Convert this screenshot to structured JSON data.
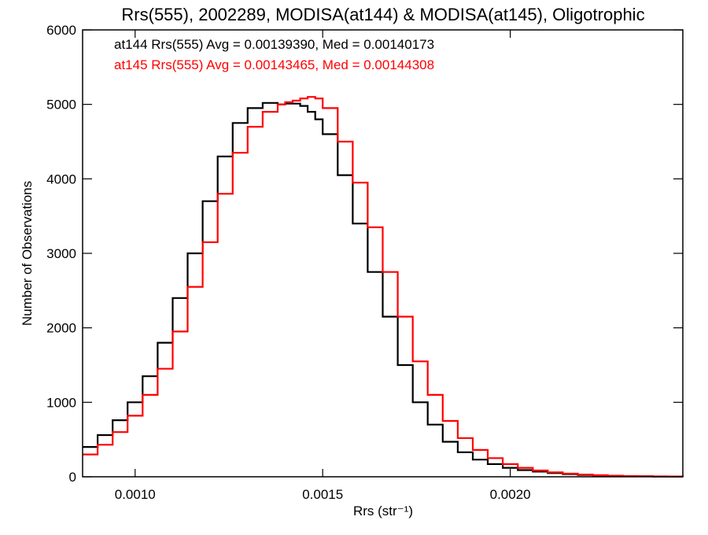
{
  "chart_data": {
    "type": "line",
    "title": "Rrs(555), 2002289, MODISA(at144) & MODISA(at145), Oligotrophic",
    "xlabel": "Rrs (str⁻¹)",
    "ylabel": "Number of Observations",
    "xlim": [
      0.00086,
      0.00246
    ],
    "ylim": [
      0,
      6000
    ],
    "xticks": [
      0.001,
      0.0015,
      0.002
    ],
    "xtick_labels": [
      "0.0010",
      "0.0015",
      "0.0020"
    ],
    "yticks": [
      0,
      1000,
      2000,
      3000,
      4000,
      5000,
      6000
    ],
    "ytick_labels": [
      "0",
      "1000",
      "2000",
      "3000",
      "4000",
      "5000",
      "6000"
    ],
    "grid": false,
    "legend_position": "top-left",
    "series": [
      {
        "legend": "at144 Rrs(555) Avg = 0.00139390, Med = 0.00140173",
        "color": "#000000",
        "x": [
          0.00086,
          0.0009,
          0.00094,
          0.00098,
          0.00102,
          0.00106,
          0.0011,
          0.00114,
          0.00118,
          0.00122,
          0.00126,
          0.0013,
          0.00134,
          0.00138,
          0.0014,
          0.00142,
          0.00144,
          0.00146,
          0.00148,
          0.0015,
          0.00154,
          0.00158,
          0.00162,
          0.00166,
          0.0017,
          0.00174,
          0.00178,
          0.00182,
          0.00186,
          0.0019,
          0.00194,
          0.00198,
          0.00202,
          0.00206,
          0.0021,
          0.00214,
          0.00218,
          0.00222,
          0.00226,
          0.0023,
          0.00234,
          0.00238,
          0.00242,
          0.00246
        ],
        "y": [
          400,
          560,
          760,
          1000,
          1350,
          1800,
          2400,
          3000,
          3700,
          4300,
          4750,
          4950,
          5020,
          5000,
          5010,
          5010,
          4980,
          4900,
          4800,
          4600,
          4050,
          3400,
          2750,
          2150,
          1500,
          1000,
          700,
          470,
          330,
          230,
          170,
          120,
          90,
          70,
          50,
          35,
          25,
          18,
          12,
          8,
          6,
          4,
          3,
          2
        ]
      },
      {
        "legend": "at145 Rrs(555) Avg = 0.00143465, Med = 0.00144308",
        "color": "#ff0000",
        "x": [
          0.00086,
          0.0009,
          0.00094,
          0.00098,
          0.00102,
          0.00106,
          0.0011,
          0.00114,
          0.00118,
          0.00122,
          0.00126,
          0.0013,
          0.00134,
          0.00138,
          0.0014,
          0.00142,
          0.00144,
          0.00146,
          0.00148,
          0.0015,
          0.00154,
          0.00158,
          0.00162,
          0.00166,
          0.0017,
          0.00174,
          0.00178,
          0.00182,
          0.00186,
          0.0019,
          0.00194,
          0.00198,
          0.00202,
          0.00206,
          0.0021,
          0.00214,
          0.00218,
          0.00222,
          0.00226,
          0.0023,
          0.00234,
          0.00238,
          0.00242,
          0.00246
        ],
        "y": [
          300,
          430,
          600,
          820,
          1100,
          1450,
          1950,
          2550,
          3150,
          3800,
          4350,
          4700,
          4900,
          5000,
          5030,
          5050,
          5080,
          5100,
          5080,
          4950,
          4500,
          3950,
          3350,
          2750,
          2150,
          1550,
          1100,
          750,
          520,
          360,
          250,
          170,
          120,
          85,
          60,
          42,
          30,
          21,
          15,
          10,
          7,
          5,
          4,
          3
        ]
      }
    ]
  }
}
